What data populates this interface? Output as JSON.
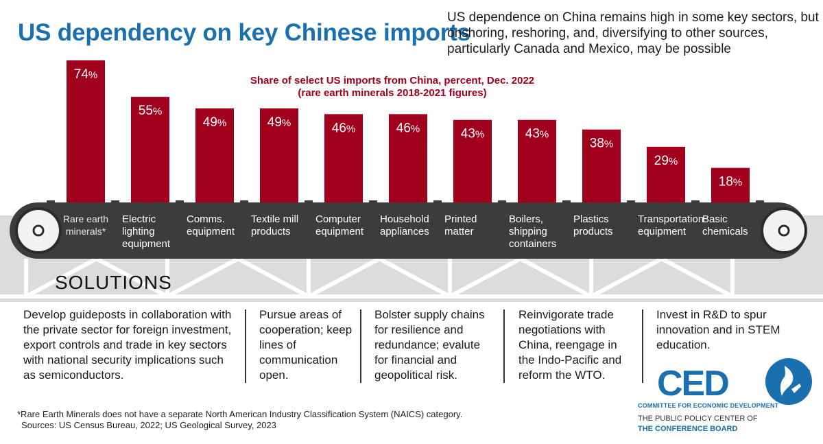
{
  "title": "US dependency on key Chinese imports",
  "subtitle": "US dependence on China remains high in some key sectors, but onshoring, reshoring, and, diversifying to other sources, particularly Canada and Mexico, may be possible",
  "chart_data": {
    "type": "bar",
    "title": "Share of select US imports from China, percent, Dec. 2022",
    "subtitle": "(rare earth minerals 2018-2021 figures)",
    "unit": "%",
    "ylim": [
      0,
      74
    ],
    "categories": [
      "Rare earth minerals*",
      "Electric lighting equipment",
      "Comms. equipment",
      "Textile mill products",
      "Computer equipment",
      "Household appliances",
      "Printed matter",
      "Boilers, shipping containers",
      "Plastics products",
      "Transportation equipment",
      "Basic chemicals"
    ],
    "category_lines": [
      [
        "Rare earth",
        "minerals*"
      ],
      [
        "Electric",
        "lighting",
        "equipment"
      ],
      [
        "Comms.",
        "equipment"
      ],
      [
        "Textile mill",
        "products"
      ],
      [
        "Computer",
        "equipment"
      ],
      [
        "Household",
        "appliances"
      ],
      [
        "Printed",
        "matter"
      ],
      [
        "Boilers,",
        "shipping",
        "containers"
      ],
      [
        "Plastics",
        "products"
      ],
      [
        "Transportation",
        "equipment"
      ],
      [
        "Basic",
        "chemicals"
      ]
    ],
    "values": [
      74,
      55,
      49,
      49,
      46,
      46,
      43,
      43,
      38,
      29,
      18
    ],
    "bar_color": "#a0001c",
    "label_color": "#ffffff"
  },
  "solutions": {
    "heading": "SOLUTIONS",
    "items": [
      "Develop guideposts in collaboration with the private sector for foreign investment, export controls and trade in key sectors with national security implications such as semiconductors.",
      "Pursue areas of cooperation; keep lines of communication open.",
      "Bolster supply chains for resilience and redundance; evalute for financial and geopolitical risk.",
      "Reinvigorate trade negotiations with China, reengage in the Indo-Pacific and reform the WTO.",
      "Invest in R&D to spur innovation and in STEM education."
    ]
  },
  "footnote": {
    "line1": "*Rare Earth Minerals does not have a separate North American Industry Classification System (NAICS) category.",
    "line2": "Sources: US Census Bureau, 2022; US Geological Survey, 2023"
  },
  "logo": {
    "name": "CED",
    "subtitle": "COMMITTEE FOR ECONOMIC DEVELOPMENT",
    "line1": "THE PUBLIC POLICY CENTER OF",
    "line2": "THE CONFERENCE BOARD"
  },
  "colors": {
    "title": "#1a6fae",
    "bar": "#a0001c",
    "belt": "#3c3c3c",
    "truss": "#dcdcdc",
    "chart_title": "#a0001c"
  }
}
